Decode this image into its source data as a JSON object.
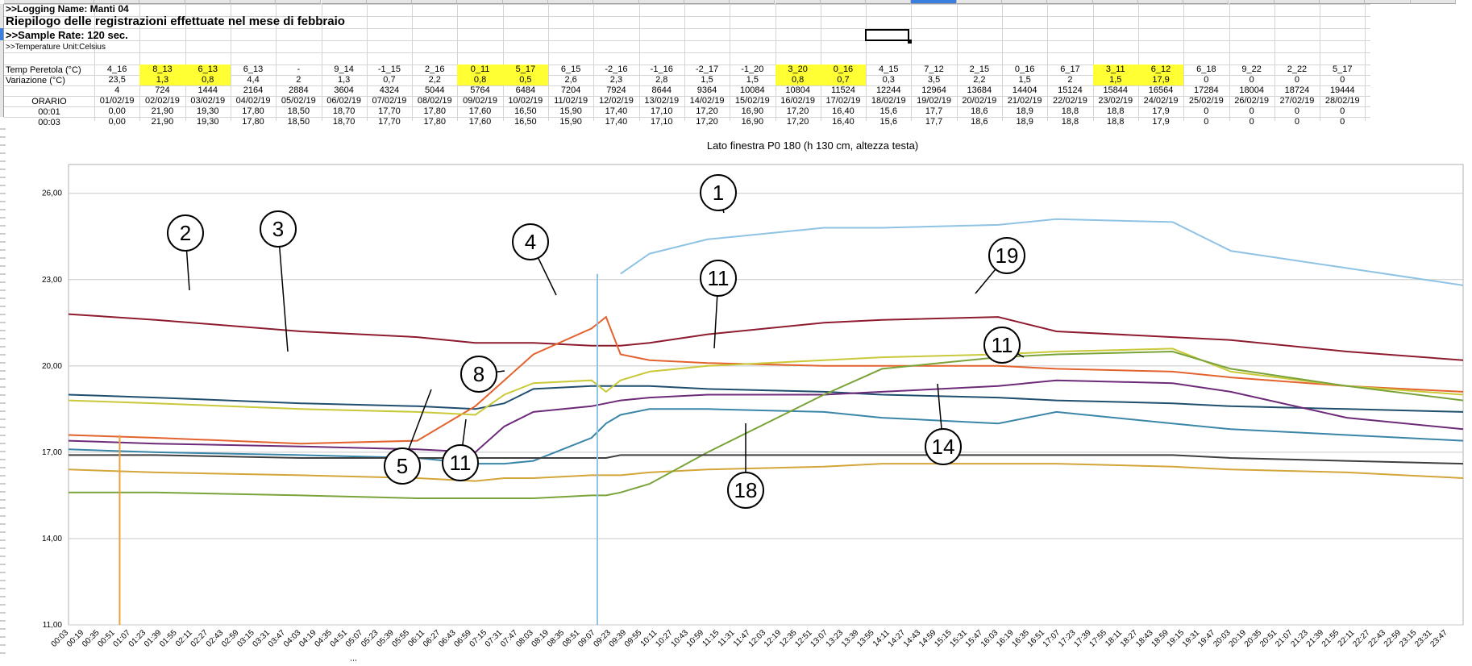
{
  "header_info": {
    "logging_name": ">>Logging Name: Manti 04",
    "title": "Riepilogo delle registrazioni effettuate nel mese di febbraio",
    "sample_rate": ">>Sample Rate: 120 sec.",
    "temp_unit": ">>Temperature Unit:Celsius"
  },
  "table": {
    "row_labels": [
      "Temp Peretola (°C)",
      "Variazione (°C)",
      "",
      "ORARIO",
      "00:01",
      "00:03"
    ],
    "columns": [
      {
        "temp": "4_16",
        "var": "23,5",
        "idx": "4",
        "date": "01/02/19",
        "v1": "0,00",
        "v2": "0,00"
      },
      {
        "temp": "8_13",
        "var": "1,3",
        "idx": "724",
        "date": "02/02/19",
        "v1": "21,90",
        "v2": "21,90",
        "hl": true
      },
      {
        "temp": "6_13",
        "var": "0,8",
        "idx": "1444",
        "date": "03/02/19",
        "v1": "19,30",
        "v2": "19,30",
        "hl": true
      },
      {
        "temp": "6_13",
        "var": "4,4",
        "idx": "2164",
        "date": "04/02/19",
        "v1": "17,80",
        "v2": "17,80"
      },
      {
        "temp": "-",
        "var": "2",
        "idx": "2884",
        "date": "05/02/19",
        "v1": "18,50",
        "v2": "18,50"
      },
      {
        "temp": "9_14",
        "var": "1,3",
        "idx": "3604",
        "date": "06/02/19",
        "v1": "18,70",
        "v2": "18,70"
      },
      {
        "temp": "-1_15",
        "var": "0,7",
        "idx": "4324",
        "date": "07/02/19",
        "v1": "17,70",
        "v2": "17,70"
      },
      {
        "temp": "2_16",
        "var": "2,2",
        "idx": "5044",
        "date": "08/02/19",
        "v1": "17,80",
        "v2": "17,80"
      },
      {
        "temp": "0_11",
        "var": "0,8",
        "idx": "5764",
        "date": "09/02/19",
        "v1": "17,60",
        "v2": "17,60",
        "hl": true
      },
      {
        "temp": "5_17",
        "var": "0,5",
        "idx": "6484",
        "date": "10/02/19",
        "v1": "16,50",
        "v2": "16,50",
        "hl": true
      },
      {
        "temp": "6_15",
        "var": "2,6",
        "idx": "7204",
        "date": "11/02/19",
        "v1": "15,90",
        "v2": "15,90"
      },
      {
        "temp": "-2_16",
        "var": "2,3",
        "idx": "7924",
        "date": "12/02/19",
        "v1": "17,40",
        "v2": "17,40"
      },
      {
        "temp": "-1_16",
        "var": "2,8",
        "idx": "8644",
        "date": "13/02/19",
        "v1": "17,10",
        "v2": "17,10"
      },
      {
        "temp": "-2_17",
        "var": "1,5",
        "idx": "9364",
        "date": "14/02/19",
        "v1": "17,20",
        "v2": "17,20"
      },
      {
        "temp": "-1_20",
        "var": "1,5",
        "idx": "10084",
        "date": "15/02/19",
        "v1": "16,90",
        "v2": "16,90"
      },
      {
        "temp": "3_20",
        "var": "0,8",
        "idx": "10804",
        "date": "16/02/19",
        "v1": "17,20",
        "v2": "17,20",
        "hl": true
      },
      {
        "temp": "0_16",
        "var": "0,7",
        "idx": "11524",
        "date": "17/02/19",
        "v1": "16,40",
        "v2": "16,40",
        "hl": true
      },
      {
        "temp": "4_15",
        "var": "0,3",
        "idx": "12244",
        "date": "18/02/19",
        "v1": "15,6",
        "v2": "15,6"
      },
      {
        "temp": "7_12",
        "var": "3,5",
        "idx": "12964",
        "date": "19/02/19",
        "v1": "17,7",
        "v2": "17,7"
      },
      {
        "temp": "2_15",
        "var": "2,2",
        "idx": "13684",
        "date": "20/02/19",
        "v1": "18,6",
        "v2": "18,6"
      },
      {
        "temp": "0_16",
        "var": "1,5",
        "idx": "14404",
        "date": "21/02/19",
        "v1": "18,9",
        "v2": "18,9"
      },
      {
        "temp": "6_17",
        "var": "2",
        "idx": "15124",
        "date": "22/02/19",
        "v1": "18,8",
        "v2": "18,8"
      },
      {
        "temp": "3_11",
        "var": "1,5",
        "idx": "15844",
        "date": "23/02/19",
        "v1": "18,8",
        "v2": "18,8",
        "hl": true
      },
      {
        "temp": "6_12",
        "var": "17,9",
        "idx": "16564",
        "date": "24/02/19",
        "v1": "17,9",
        "v2": "17,9",
        "hl": true
      },
      {
        "temp": "6_18",
        "var": "0",
        "idx": "17284",
        "date": "25/02/19",
        "v1": "0",
        "v2": "0"
      },
      {
        "temp": "9_22",
        "var": "0",
        "idx": "18004",
        "date": "26/02/19",
        "v1": "0",
        "v2": "0"
      },
      {
        "temp": "2_22",
        "var": "0",
        "idx": "18724",
        "date": "27/02/19",
        "v1": "0",
        "v2": "0"
      },
      {
        "temp": "5_17",
        "var": "0",
        "idx": "19444",
        "date": "28/02/19",
        "v1": "0",
        "v2": "0"
      }
    ]
  },
  "colors": {
    "highlight": "#ffff33",
    "selected_header": "#3a7ee0"
  },
  "chart_data": {
    "type": "line",
    "title": "Lato finestra P0 180 (h 130 cm, altezza testa)",
    "ylim": [
      11,
      27
    ],
    "yticks": [
      "11,00",
      "14,00",
      "17,00",
      "20,00",
      "23,00",
      "26,00"
    ],
    "ytick_values": [
      11,
      14,
      17,
      20,
      23,
      26
    ],
    "xticks": [
      "00:03",
      "00:19",
      "00:35",
      "00:51",
      "01:07",
      "01:23",
      "01:39",
      "01:55",
      "02:11",
      "02:27",
      "02:43",
      "02:59",
      "03:15",
      "03:31",
      "03:47",
      "04:03",
      "04:19",
      "04:35",
      "04:51",
      "05:07",
      "05:23",
      "05:39",
      "05:55",
      "06:11",
      "06:27",
      "06:43",
      "06:59",
      "07:15",
      "07:31",
      "07:47",
      "08:03",
      "08:19",
      "08:35",
      "08:51",
      "09:07",
      "09:23",
      "09:39",
      "09:55",
      "10:11",
      "10:27",
      "10:43",
      "10:59",
      "11:15",
      "11:31",
      "11:47",
      "12:03",
      "12:19",
      "12:35",
      "12:51",
      "13:07",
      "13:23",
      "13:39",
      "13:55",
      "14:11",
      "14:27",
      "14:43",
      "14:59",
      "15:15",
      "15:31",
      "15:47",
      "16:03",
      "16:19",
      "16:35",
      "16:51",
      "17:07",
      "17:23",
      "17:39",
      "17:55",
      "18:11",
      "18:27",
      "18:43",
      "18:59",
      "19:15",
      "19:31",
      "19:47",
      "20:03",
      "20:19",
      "20:35",
      "20:51",
      "21:07",
      "21:23",
      "21:39",
      "21:55",
      "22:11",
      "22:27",
      "22:43",
      "22:59",
      "23:15",
      "23:31",
      "23:47"
    ],
    "x_hours": [
      0,
      1.5,
      4,
      6,
      7,
      7.5,
      8,
      9,
      9.25,
      9.5,
      10,
      11,
      13,
      14,
      16,
      17,
      19,
      20,
      22,
      24
    ],
    "series": [
      {
        "color": "#8fc3e3",
        "values": [
          null,
          null,
          null,
          null,
          null,
          null,
          null,
          null,
          null,
          23.2,
          23.9,
          24.4,
          24.8,
          24.8,
          24.9,
          25.1,
          25.0,
          24.0,
          23.4,
          22.8
        ]
      },
      {
        "color": "#8e1b2e",
        "values": [
          21.8,
          21.6,
          21.2,
          21.0,
          20.8,
          20.8,
          20.8,
          20.7,
          20.7,
          20.7,
          20.8,
          21.1,
          21.5,
          21.6,
          21.7,
          21.2,
          21.0,
          20.9,
          20.5,
          20.2
        ]
      },
      {
        "color": "#1f4e6e",
        "values": [
          19.0,
          18.9,
          18.7,
          18.6,
          18.5,
          18.7,
          19.2,
          19.3,
          19.3,
          19.3,
          19.3,
          19.2,
          19.1,
          19.0,
          18.9,
          18.8,
          18.7,
          18.6,
          18.5,
          18.4
        ]
      },
      {
        "color": "#e3622e",
        "values": [
          17.6,
          17.5,
          17.3,
          17.4,
          18.6,
          19.5,
          20.4,
          21.3,
          21.7,
          20.4,
          20.2,
          20.1,
          20.0,
          20.0,
          20.0,
          19.9,
          19.8,
          19.6,
          19.3,
          19.1
        ]
      },
      {
        "color": "#c9c93a",
        "values": [
          18.8,
          18.7,
          18.5,
          18.4,
          18.3,
          19.0,
          19.4,
          19.5,
          19.1,
          19.5,
          19.8,
          20.0,
          20.2,
          20.3,
          20.4,
          20.5,
          20.6,
          19.8,
          19.3,
          19.0
        ]
      },
      {
        "color": "#6d2a79",
        "values": [
          17.4,
          17.3,
          17.2,
          17.1,
          17.0,
          17.9,
          18.4,
          18.6,
          18.7,
          18.8,
          18.9,
          19.0,
          19.0,
          19.1,
          19.3,
          19.5,
          19.4,
          19.1,
          18.2,
          17.8
        ]
      },
      {
        "color": "#3a86a8",
        "values": [
          17.1,
          17.0,
          16.9,
          16.8,
          16.6,
          16.6,
          16.7,
          17.5,
          18.0,
          18.3,
          18.5,
          18.5,
          18.4,
          18.2,
          18.0,
          18.4,
          18.0,
          17.8,
          17.6,
          17.4
        ]
      },
      {
        "color": "#d4a53a",
        "values": [
          16.4,
          16.3,
          16.2,
          16.1,
          16.0,
          16.1,
          16.1,
          16.2,
          16.2,
          16.2,
          16.3,
          16.4,
          16.5,
          16.6,
          16.6,
          16.6,
          16.5,
          16.4,
          16.3,
          16.1
        ]
      },
      {
        "color": "#7aa33a",
        "values": [
          15.6,
          15.6,
          15.5,
          15.4,
          15.4,
          15.4,
          15.4,
          15.5,
          15.5,
          15.6,
          15.9,
          17.0,
          19.0,
          19.9,
          20.3,
          20.4,
          20.5,
          19.9,
          19.3,
          18.8
        ]
      },
      {
        "color": "#3f3f3f",
        "values": [
          16.9,
          16.9,
          16.8,
          16.8,
          16.8,
          16.8,
          16.8,
          16.8,
          16.8,
          16.9,
          16.9,
          16.9,
          16.9,
          16.9,
          16.9,
          16.9,
          16.9,
          16.8,
          16.7,
          16.6
        ]
      }
    ],
    "callouts": [
      "1",
      "2",
      "3",
      "4",
      "5",
      "8",
      "11",
      "11",
      "11",
      "14",
      "18",
      "19"
    ]
  }
}
